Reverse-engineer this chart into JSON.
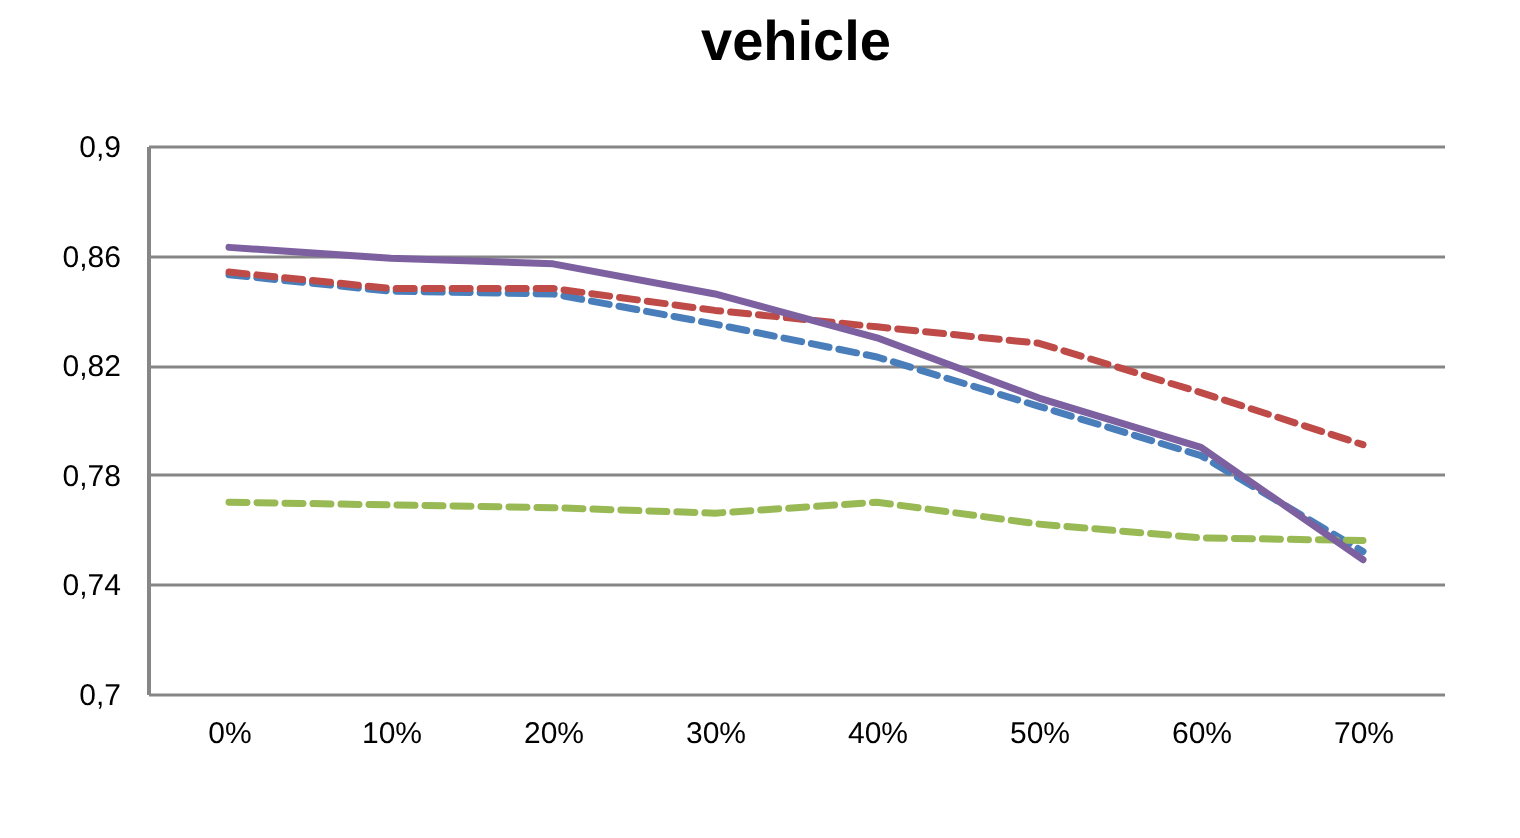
{
  "chart_data": {
    "type": "line",
    "title": "vehicle",
    "categories": [
      "0%",
      "10%",
      "20%",
      "30%",
      "40%",
      "50%",
      "60%",
      "70%"
    ],
    "series": [
      {
        "color": "#4a7ebb",
        "line_style": "dashed",
        "values": [
          0.853,
          0.847,
          0.846,
          0.835,
          0.823,
          0.805,
          0.787,
          0.752
        ]
      },
      {
        "color": "#be4b48",
        "line_style": "dashed",
        "values": [
          0.854,
          0.848,
          0.848,
          0.84,
          0.834,
          0.828,
          0.81,
          0.791
        ]
      },
      {
        "color": "#98b954",
        "line_style": "dashed",
        "values": [
          0.77,
          0.769,
          0.768,
          0.766,
          0.77,
          0.762,
          0.757,
          0.756
        ]
      },
      {
        "color": "#7d60a0",
        "line_style": "solid",
        "values": [
          0.863,
          0.859,
          0.857,
          0.846,
          0.83,
          0.808,
          0.79,
          0.749
        ]
      }
    ],
    "ylim": [
      0.7,
      0.9
    ],
    "yticks": [
      {
        "value": 0.7,
        "label": "0,7"
      },
      {
        "value": 0.74,
        "label": "0,74"
      },
      {
        "value": 0.78,
        "label": "0,78"
      },
      {
        "value": 0.82,
        "label": "0,82"
      },
      {
        "value": 0.86,
        "label": "0,86"
      },
      {
        "value": 0.9,
        "label": "0,9"
      }
    ],
    "grid": "y",
    "marker": "none"
  }
}
